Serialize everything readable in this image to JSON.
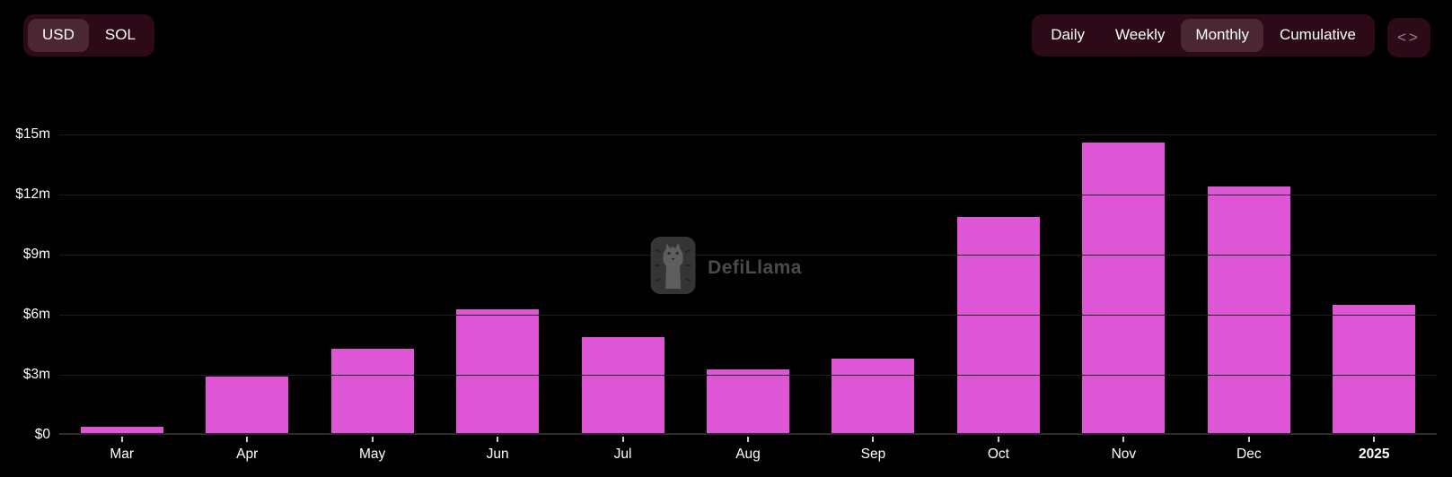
{
  "header": {
    "currency_toggle": {
      "options": [
        {
          "label": "USD",
          "selected": true
        },
        {
          "label": "SOL",
          "selected": false
        }
      ]
    },
    "interval_toggle": {
      "options": [
        {
          "label": "Daily",
          "selected": false
        },
        {
          "label": "Weekly",
          "selected": false
        },
        {
          "label": "Monthly",
          "selected": true
        },
        {
          "label": "Cumulative",
          "selected": false
        }
      ]
    },
    "embed_button": {
      "icon": "code-icon",
      "label": "<>"
    }
  },
  "watermark": {
    "icon": "defillama-llama-logo",
    "text": "DefiLlama"
  },
  "chart_data": {
    "type": "bar",
    "title": "",
    "xlabel": "",
    "ylabel": "",
    "unit": "USD millions",
    "categories": [
      "Mar",
      "Apr",
      "May",
      "Jun",
      "Jul",
      "Aug",
      "Sep",
      "Oct",
      "Nov",
      "Dec",
      "2025"
    ],
    "values": [
      0.3,
      2.8,
      4.2,
      6.2,
      4.8,
      3.2,
      3.7,
      10.8,
      14.5,
      12.3,
      6.4
    ],
    "y_ticks": [
      "$15m",
      "$12m",
      "$9m",
      "$6m",
      "$3m",
      "$0"
    ],
    "y_tick_values": [
      15,
      12,
      9,
      6,
      3,
      0
    ],
    "ylim": [
      0,
      15
    ],
    "grid": "horizontal",
    "legend": "none",
    "bar_color": "#de55d5",
    "x_bold_labels": [
      "2025"
    ]
  },
  "colors": {
    "background": "#000000",
    "bar": "#de55d5",
    "toggle_group_bg": "#2d0a17",
    "toggle_selected_bg": "#4a2733",
    "grid_line": "#1c1c1c",
    "axis_line": "#2d2d2d",
    "watermark_text": "#4b4b4b"
  }
}
